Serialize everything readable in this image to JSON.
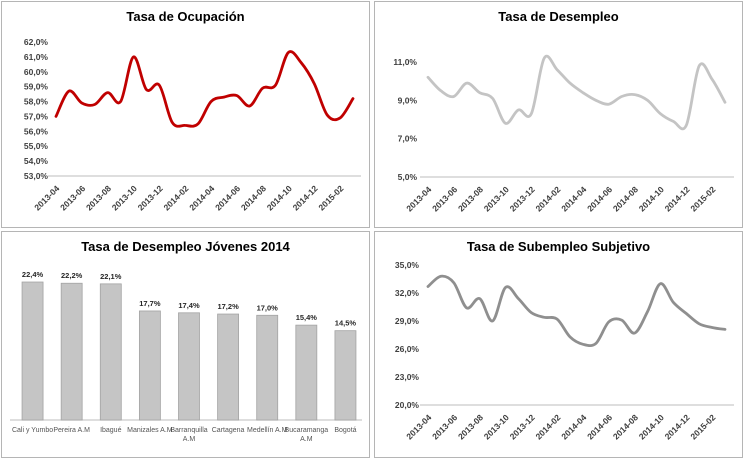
{
  "style": {
    "panel_border": "#B5B5B5",
    "axis_line_color": "#C9C9C9",
    "tick_text_color": "#3F3F3F",
    "title_color": "#000000"
  },
  "chart_data": [
    {
      "id": "tasa-ocupacion",
      "type": "line",
      "title": "Tasa de Ocupación",
      "line_color": "#C00000",
      "ylim": [
        53,
        62
      ],
      "y_ticks": {
        "labels": [
          "62,0%",
          "61,0%",
          "60,0%",
          "59,0%",
          "58,0%",
          "57,0%",
          "56,0%",
          "55,0%",
          "54,0%",
          "53,0%"
        ],
        "values": [
          62,
          61,
          60,
          59,
          58,
          57,
          56,
          55,
          54,
          53
        ]
      },
      "x_labels": [
        "2013-04",
        "2013-06",
        "2013-08",
        "2013-10",
        "2013-12",
        "2014-02",
        "2014-04",
        "2014-06",
        "2014-08",
        "2014-10",
        "2014-12",
        "2015-02"
      ],
      "values": [
        57.0,
        58.7,
        57.9,
        57.8,
        58.6,
        58.0,
        61.0,
        58.8,
        59.1,
        56.6,
        56.4,
        56.5,
        58.0,
        58.3,
        58.4,
        57.7,
        58.9,
        59.1,
        61.3,
        60.6,
        59.2,
        57.1,
        56.9,
        58.2
      ],
      "grid": false,
      "legend": "none"
    },
    {
      "id": "tasa-desempleo",
      "type": "line",
      "title": "Tasa de Desempleo",
      "line_color": "#C4C4C4",
      "ylim": [
        5,
        11
      ],
      "y_ticks": {
        "labels": [
          "11,0%",
          "9,0%",
          "7,0%",
          "5,0%"
        ],
        "values": [
          11,
          9,
          7,
          5
        ]
      },
      "x_labels": [
        "2013-04",
        "2013-06",
        "2013-08",
        "2013-10",
        "2013-12",
        "2014-02",
        "2014-04",
        "2014-06",
        "2014-08",
        "2014-10",
        "2014-12",
        "2015-02"
      ],
      "values": [
        10.2,
        9.5,
        9.2,
        9.9,
        9.4,
        9.1,
        7.8,
        8.5,
        8.3,
        11.2,
        10.6,
        9.9,
        9.4,
        9.0,
        8.8,
        9.2,
        9.3,
        9.0,
        8.3,
        7.9,
        7.7,
        10.8,
        10.1,
        8.9
      ],
      "grid": false,
      "legend": "none"
    },
    {
      "id": "tasa-desempleo-jovenes-2014",
      "type": "bar",
      "title": "Tasa de Desempleo Jóvenes 2014",
      "bar_fill": "#C5C5C5",
      "bar_stroke": "#A3A3A3",
      "categories": [
        "Cali y Yumbo",
        "Pereira A.M",
        "Ibagué",
        "Manizales A.M",
        "Barranquilla A.M",
        "Cartagena",
        "Medellín A.M",
        "Bucaramanga A.M",
        "Bogotá"
      ],
      "category_lines": [
        [
          "Cali y Yumbo"
        ],
        [
          "Pereira A.M"
        ],
        [
          "Ibagué"
        ],
        [
          "Manizales A.M"
        ],
        [
          "Barranquilla",
          "A.M"
        ],
        [
          "Cartagena"
        ],
        [
          "Medellín A.M"
        ],
        [
          "Bucaramanga",
          "A.M"
        ],
        [
          "Bogotá"
        ]
      ],
      "values": [
        22.4,
        22.2,
        22.1,
        17.7,
        17.4,
        17.2,
        17.0,
        15.4,
        14.5
      ],
      "value_labels": [
        "22,4%",
        "22,2%",
        "22,1%",
        "17,7%",
        "17,4%",
        "17,2%",
        "17,0%",
        "15,4%",
        "14,5%"
      ],
      "ylim": [
        0,
        24
      ],
      "grid": false,
      "legend": "none"
    },
    {
      "id": "tasa-subempleo-subjetivo",
      "type": "line",
      "title": "Tasa de Subempleo Subjetivo",
      "line_color": "#8F8F8F",
      "ylim": [
        20,
        35
      ],
      "y_ticks": {
        "labels": [
          "35,0%",
          "32,0%",
          "29,0%",
          "26,0%",
          "23,0%",
          "20,0%"
        ],
        "values": [
          35,
          32,
          29,
          26,
          23,
          20
        ]
      },
      "x_labels": [
        "2013-04",
        "2013-06",
        "2013-08",
        "2013-10",
        "2013-12",
        "2014-02",
        "2014-04",
        "2014-06",
        "2014-08",
        "2014-10",
        "2014-12",
        "2015-02"
      ],
      "values": [
        32.7,
        33.8,
        33.1,
        30.4,
        31.4,
        29.0,
        32.6,
        31.4,
        29.9,
        29.4,
        29.2,
        27.3,
        26.5,
        26.6,
        28.9,
        29.1,
        27.7,
        30.0,
        33.0,
        31.0,
        29.8,
        28.7,
        28.3,
        28.1
      ],
      "grid": false,
      "legend": "none"
    }
  ]
}
